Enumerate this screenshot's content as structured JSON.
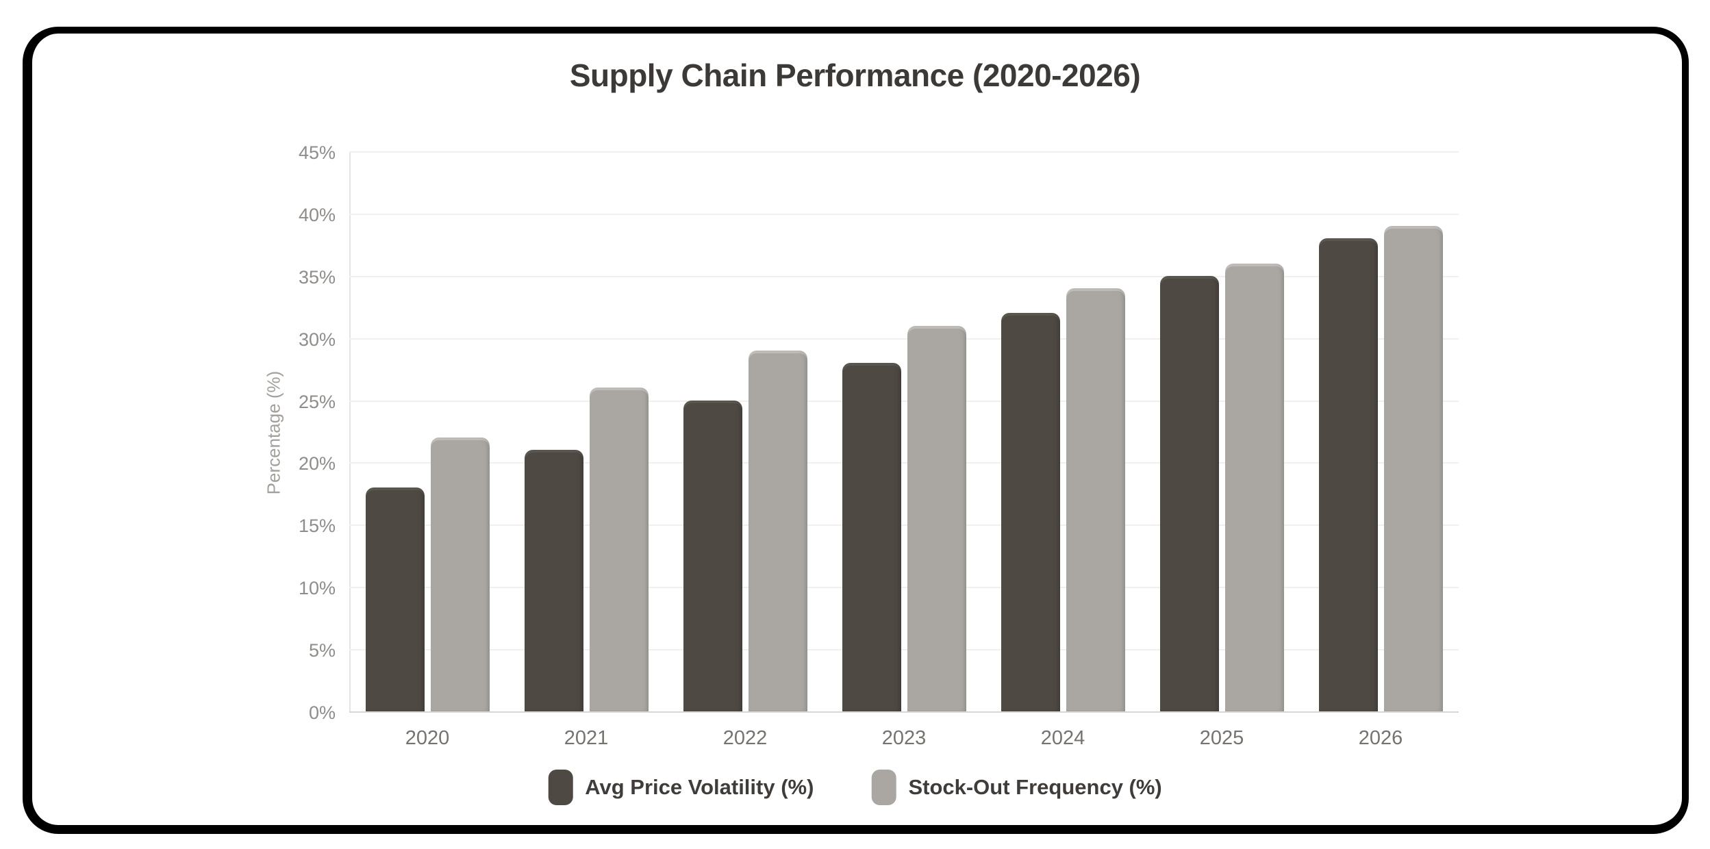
{
  "frame": {
    "border_color": "#000000"
  },
  "title": "Supply Chain Performance (2020-2026)",
  "colors": {
    "title_text": "#3d3936",
    "y_tick_text": "#8f8c89",
    "x_tick_text": "#76726e",
    "y_axis_title_text": "#a39f9b",
    "gridline": "#f1f0ef",
    "y_axis_line": "#e6e4e2",
    "x_axis_line": "#d9d6d3",
    "legend_text": "#403c39",
    "background": "#ffffff"
  },
  "chart_data": {
    "type": "bar",
    "title": "Supply Chain Performance (2020-2026)",
    "categories": [
      "2020",
      "2021",
      "2022",
      "2023",
      "2024",
      "2025",
      "2026"
    ],
    "series": [
      {
        "name": "Avg Price Volatility (%)",
        "color": "#4e4943",
        "values": [
          18,
          21,
          25,
          28,
          32,
          35,
          38
        ]
      },
      {
        "name": "Stock-Out Frequency (%)",
        "color": "#aaa6a2",
        "values": [
          22,
          26,
          29,
          31,
          34,
          36,
          39
        ]
      }
    ],
    "xlabel": "",
    "ylabel": "Percentage (%)",
    "ylim": [
      0,
      45
    ],
    "ytick_step": 5,
    "yticks": [
      "0%",
      "5%",
      "10%",
      "15%",
      "20%",
      "25%",
      "30%",
      "35%",
      "40%",
      "45%"
    ],
    "grid": true,
    "legend_position": "bottom"
  }
}
